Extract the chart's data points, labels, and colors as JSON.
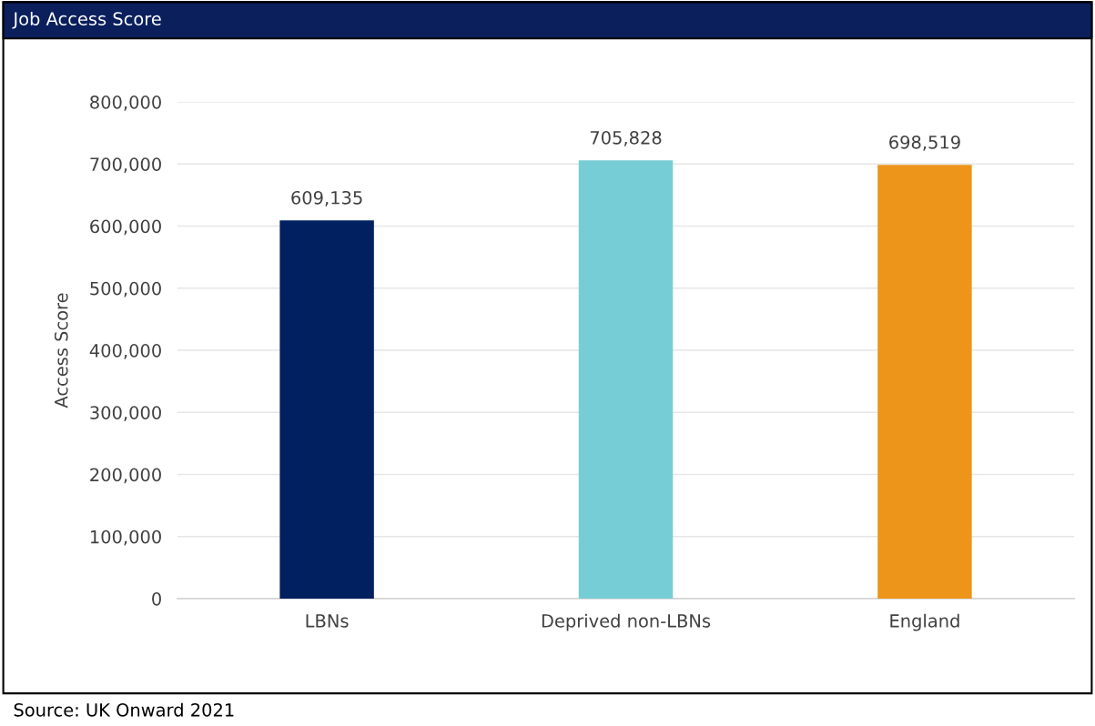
{
  "chart_data": {
    "type": "bar",
    "title": "Job Access Score",
    "ylabel": "Access Score",
    "categories": [
      "LBNs",
      "Deprived non-LBNs",
      "England"
    ],
    "values": [
      609135,
      705828,
      698519
    ],
    "colors": [
      "#002060",
      "#77cdd5",
      "#ec951a"
    ],
    "ylim": [
      0,
      800000
    ],
    "yticks": [
      {
        "value": 0,
        "label": "0"
      },
      {
        "value": 100000,
        "label": "100,000"
      },
      {
        "value": 200000,
        "label": "200,000"
      },
      {
        "value": 300000,
        "label": "300,000"
      },
      {
        "value": 400000,
        "label": "400,000"
      },
      {
        "value": 500000,
        "label": "500,000"
      },
      {
        "value": 600000,
        "label": "600,000"
      },
      {
        "value": 700000,
        "label": "700,000"
      },
      {
        "value": 800000,
        "label": "800,000"
      }
    ],
    "value_labels": [
      "609,135",
      "705,828",
      "698,519"
    ],
    "grid": "y",
    "legend": false,
    "annotations": [
      "Source: UK Onward 2021"
    ]
  }
}
